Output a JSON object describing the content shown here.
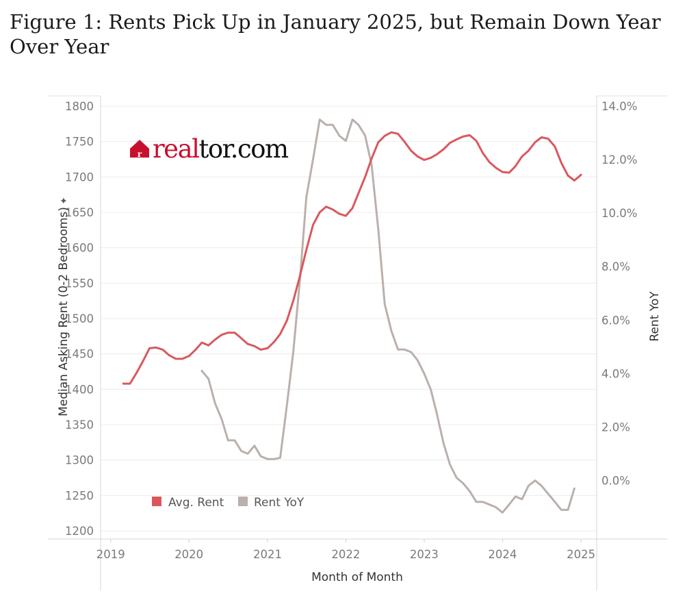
{
  "title": "Figure 1: Rents Pick Up in January 2025, but Remain Down Year Over Year",
  "logo": {
    "part1": "real",
    "part2": "tor.com",
    "color": "#c8102e"
  },
  "colors": {
    "avg_rent": "#d9585d",
    "rent_yoy": "#bab0ac",
    "grid": "#ececec",
    "axis": "#cfcfcf"
  },
  "chart_data": {
    "type": "line",
    "xlabel": "Month of Month",
    "ylabel_left": "Median Asking Rent (0-2 Bedrooms)",
    "ylabel_right": "Rent YoY",
    "left_ylim": [
      1200,
      1800
    ],
    "right_ylim": [
      -1.5,
      14.0
    ],
    "x_range": [
      "2018-11-15",
      "2025-03-15"
    ],
    "x_tick_labels": [
      "2019",
      "2020",
      "2021",
      "2022",
      "2023",
      "2024",
      "2025"
    ],
    "left_tick_labels": [
      "1800",
      "1750",
      "1700",
      "1650",
      "1600",
      "1550",
      "1500",
      "1450",
      "1400",
      "1350",
      "1300",
      "1250",
      "1200"
    ],
    "right_tick_labels": [
      "14.0%",
      "12.0%",
      "10.0%",
      "8.0%",
      "6.0%",
      "4.0%",
      "2.0%",
      "0.0%"
    ],
    "legend_position": "bottom-left",
    "series": [
      {
        "name": "Avg. Rent",
        "axis": "left",
        "points": [
          [
            "2019-03",
            1408
          ],
          [
            "2019-04",
            1408
          ],
          [
            "2019-05",
            1423
          ],
          [
            "2019-06",
            1440
          ],
          [
            "2019-07",
            1458
          ],
          [
            "2019-08",
            1459
          ],
          [
            "2019-09",
            1456
          ],
          [
            "2019-10",
            1448
          ],
          [
            "2019-11",
            1443
          ],
          [
            "2019-12",
            1443
          ],
          [
            "2020-01",
            1447
          ],
          [
            "2020-02",
            1456
          ],
          [
            "2020-03",
            1466
          ],
          [
            "2020-04",
            1462
          ],
          [
            "2020-05",
            1470
          ],
          [
            "2020-06",
            1477
          ],
          [
            "2020-07",
            1480
          ],
          [
            "2020-08",
            1480
          ],
          [
            "2020-09",
            1472
          ],
          [
            "2020-10",
            1464
          ],
          [
            "2020-11",
            1461
          ],
          [
            "2020-12",
            1456
          ],
          [
            "2021-01",
            1458
          ],
          [
            "2021-02",
            1467
          ],
          [
            "2021-03",
            1478
          ],
          [
            "2021-04",
            1497
          ],
          [
            "2021-05",
            1525
          ],
          [
            "2021-06",
            1560
          ],
          [
            "2021-07",
            1597
          ],
          [
            "2021-08",
            1632
          ],
          [
            "2021-09",
            1650
          ],
          [
            "2021-10",
            1658
          ],
          [
            "2021-11",
            1654
          ],
          [
            "2021-12",
            1648
          ],
          [
            "2022-01",
            1645
          ],
          [
            "2022-02",
            1656
          ],
          [
            "2022-03",
            1677
          ],
          [
            "2022-04",
            1700
          ],
          [
            "2022-05",
            1726
          ],
          [
            "2022-06",
            1749
          ],
          [
            "2022-07",
            1758
          ],
          [
            "2022-08",
            1763
          ],
          [
            "2022-09",
            1761
          ],
          [
            "2022-10",
            1750
          ],
          [
            "2022-11",
            1737
          ],
          [
            "2022-12",
            1729
          ],
          [
            "2023-01",
            1724
          ],
          [
            "2023-02",
            1727
          ],
          [
            "2023-03",
            1732
          ],
          [
            "2023-04",
            1739
          ],
          [
            "2023-05",
            1748
          ],
          [
            "2023-06",
            1753
          ],
          [
            "2023-07",
            1757
          ],
          [
            "2023-08",
            1759
          ],
          [
            "2023-09",
            1751
          ],
          [
            "2023-10",
            1734
          ],
          [
            "2023-11",
            1721
          ],
          [
            "2023-12",
            1713
          ],
          [
            "2024-01",
            1707
          ],
          [
            "2024-02",
            1706
          ],
          [
            "2024-03",
            1715
          ],
          [
            "2024-04",
            1729
          ],
          [
            "2024-05",
            1737
          ],
          [
            "2024-06",
            1749
          ],
          [
            "2024-07",
            1756
          ],
          [
            "2024-08",
            1754
          ],
          [
            "2024-09",
            1743
          ],
          [
            "2024-10",
            1720
          ],
          [
            "2024-11",
            1702
          ],
          [
            "2024-12",
            1695
          ],
          [
            "2025-01",
            1703
          ]
        ]
      },
      {
        "name": "Rent YoY",
        "axis": "right",
        "points": [
          [
            "2020-03",
            4.1
          ],
          [
            "2020-04",
            3.8
          ],
          [
            "2020-05",
            2.9
          ],
          [
            "2020-06",
            2.3
          ],
          [
            "2020-07",
            1.5
          ],
          [
            "2020-08",
            1.5
          ],
          [
            "2020-09",
            1.1
          ],
          [
            "2020-10",
            1.0
          ],
          [
            "2020-11",
            1.3
          ],
          [
            "2020-12",
            0.9
          ],
          [
            "2021-01",
            0.8
          ],
          [
            "2021-02",
            0.8
          ],
          [
            "2021-03",
            0.85
          ],
          [
            "2021-04",
            2.8
          ],
          [
            "2021-05",
            4.8
          ],
          [
            "2021-06",
            7.5
          ],
          [
            "2021-07",
            10.6
          ],
          [
            "2021-08",
            12.0
          ],
          [
            "2021-09",
            13.5
          ],
          [
            "2021-10",
            13.3
          ],
          [
            "2021-11",
            13.3
          ],
          [
            "2021-12",
            12.9
          ],
          [
            "2022-01",
            12.7
          ],
          [
            "2022-02",
            13.5
          ],
          [
            "2022-03",
            13.3
          ],
          [
            "2022-04",
            12.9
          ],
          [
            "2022-05",
            11.8
          ],
          [
            "2022-06",
            9.4
          ],
          [
            "2022-07",
            6.6
          ],
          [
            "2022-08",
            5.6
          ],
          [
            "2022-09",
            4.9
          ],
          [
            "2022-10",
            4.9
          ],
          [
            "2022-11",
            4.8
          ],
          [
            "2022-12",
            4.5
          ],
          [
            "2023-01",
            4.0
          ],
          [
            "2023-02",
            3.4
          ],
          [
            "2023-03",
            2.5
          ],
          [
            "2023-04",
            1.4
          ],
          [
            "2023-05",
            0.6
          ],
          [
            "2023-06",
            0.1
          ],
          [
            "2023-07",
            -0.1
          ],
          [
            "2023-08",
            -0.4
          ],
          [
            "2023-09",
            -0.8
          ],
          [
            "2023-10",
            -0.8
          ],
          [
            "2023-11",
            -0.9
          ],
          [
            "2023-12",
            -1.0
          ],
          [
            "2024-01",
            -1.2
          ],
          [
            "2024-02",
            -0.9
          ],
          [
            "2024-03",
            -0.6
          ],
          [
            "2024-04",
            -0.7
          ],
          [
            "2024-05",
            -0.2
          ],
          [
            "2024-06",
            0.0
          ],
          [
            "2024-07",
            -0.2
          ],
          [
            "2024-08",
            -0.5
          ],
          [
            "2024-09",
            -0.8
          ],
          [
            "2024-10",
            -1.1
          ],
          [
            "2024-11",
            -1.1
          ],
          [
            "2024-12",
            -0.3
          ]
        ]
      }
    ]
  }
}
